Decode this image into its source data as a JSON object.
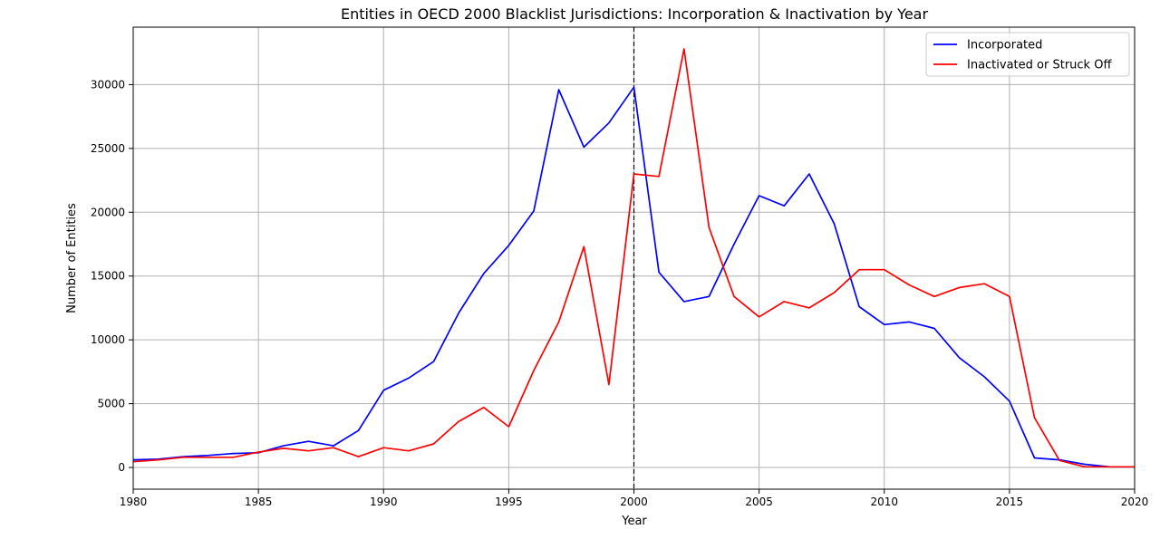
{
  "chart_data": {
    "type": "line",
    "title": "Entities in OECD 2000 Blacklist Jurisdictions: Incorporation & Inactivation by Year",
    "xlabel": "Year",
    "ylabel": "Number of Entities",
    "xlim": [
      1980,
      2020
    ],
    "ylim": [
      -1700,
      34500
    ],
    "xticks": [
      "1980",
      "1985",
      "1990",
      "1995",
      "2000",
      "2005",
      "2010",
      "2015",
      "2020"
    ],
    "yticks": [
      "0",
      "5000",
      "10000",
      "15000",
      "20000",
      "25000",
      "30000"
    ],
    "grid": true,
    "legend_position": "top-right",
    "reference_line": {
      "x": 2000,
      "style": "dashed",
      "color": "#000000"
    },
    "x": [
      1980,
      1981,
      1982,
      1983,
      1984,
      1985,
      1986,
      1987,
      1988,
      1989,
      1990,
      1991,
      1992,
      1993,
      1994,
      1995,
      1996,
      1997,
      1998,
      1999,
      2000,
      2001,
      2002,
      2003,
      2004,
      2005,
      2006,
      2007,
      2008,
      2009,
      2010,
      2011,
      2012,
      2013,
      2014,
      2015,
      2016,
      2017,
      2018,
      2019,
      2020
    ],
    "series": [
      {
        "name": "Incorporated",
        "color": "#0000ff",
        "values": [
          600,
          650,
          850,
          950,
          1100,
          1150,
          1700,
          2050,
          1700,
          2900,
          6050,
          7000,
          8300,
          12100,
          15200,
          17400,
          20100,
          29600,
          25100,
          27000,
          29800,
          15300,
          13000,
          13400,
          17500,
          21300,
          20500,
          23000,
          19100,
          12600,
          11200,
          11400,
          10900,
          8600,
          7100,
          5200,
          750,
          600,
          250,
          50,
          50
        ]
      },
      {
        "name": "Inactivated or Struck Off",
        "color": "#ff0000",
        "values": [
          450,
          600,
          800,
          800,
          800,
          1200,
          1500,
          1300,
          1550,
          850,
          1550,
          1300,
          1850,
          3600,
          4700,
          3200,
          7600,
          11400,
          17300,
          6500,
          23000,
          22800,
          32800,
          18800,
          13400,
          11800,
          13000,
          12500,
          13700,
          15500,
          15500,
          14300,
          13400,
          14100,
          14400,
          13400,
          3900,
          550,
          50,
          50,
          50
        ]
      }
    ]
  }
}
